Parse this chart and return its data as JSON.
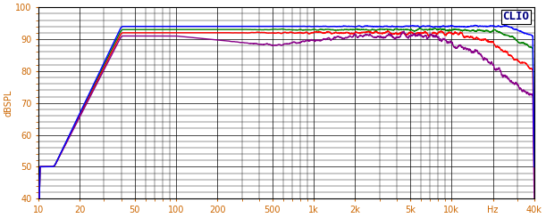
{
  "title": "CLIO",
  "ylabel": "dBSPL",
  "xlabel": "Hz",
  "xlim": [
    10,
    40000
  ],
  "ylim": [
    40,
    100
  ],
  "yticks": [
    40,
    50,
    60,
    70,
    80,
    90,
    100
  ],
  "xtick_labels": [
    "10",
    "20",
    "50",
    "100",
    "200",
    "500",
    "1k",
    "2k",
    "5k",
    "10k",
    "Hz",
    "40k"
  ],
  "xtick_positions": [
    10,
    20,
    50,
    100,
    200,
    500,
    1000,
    2000,
    5000,
    10000,
    20000,
    40000
  ],
  "bg_color": "#ffffff",
  "plot_bg_color": "#ffffff",
  "grid_color": "#000000",
  "line_colors": [
    "#0000ff",
    "#008000",
    "#ff0000",
    "#880088"
  ],
  "line_width": 1.0,
  "title_color": "#000080",
  "label_color": "#cc6600",
  "tick_color": "#cc6600"
}
